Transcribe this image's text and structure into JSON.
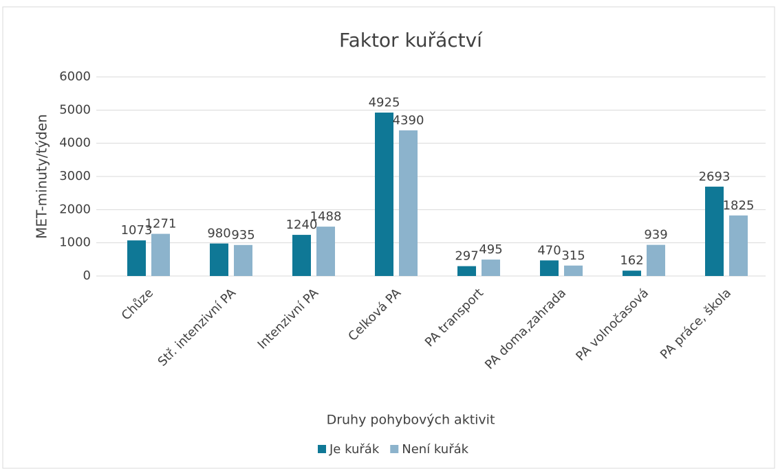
{
  "chart_data": {
    "type": "bar",
    "title": "Faktor kuřáctví",
    "x_label": "Druhy pohybových aktivit",
    "y_label": "MET-minuty/týden",
    "categories": [
      "Chůze",
      "Stř. intenzivní PA",
      "Intenzivní PA",
      "Celková PA",
      "PA transport",
      "PA doma,zahrada",
      "PA volnočasová",
      "PA práce, škola"
    ],
    "series": [
      {
        "name": "Je kuřák",
        "color": "#0f7896",
        "values": [
          1073,
          980,
          1240,
          4925,
          297,
          470,
          162,
          2693
        ]
      },
      {
        "name": "Není kuřák",
        "color": "#8cb3cc",
        "values": [
          1271,
          935,
          1488,
          4390,
          495,
          315,
          939,
          1825
        ]
      }
    ],
    "ylim": [
      0,
      6000
    ],
    "yticks": [
      0,
      1000,
      2000,
      3000,
      4000,
      5000,
      6000
    ],
    "grid": true,
    "legend": "bottom"
  }
}
